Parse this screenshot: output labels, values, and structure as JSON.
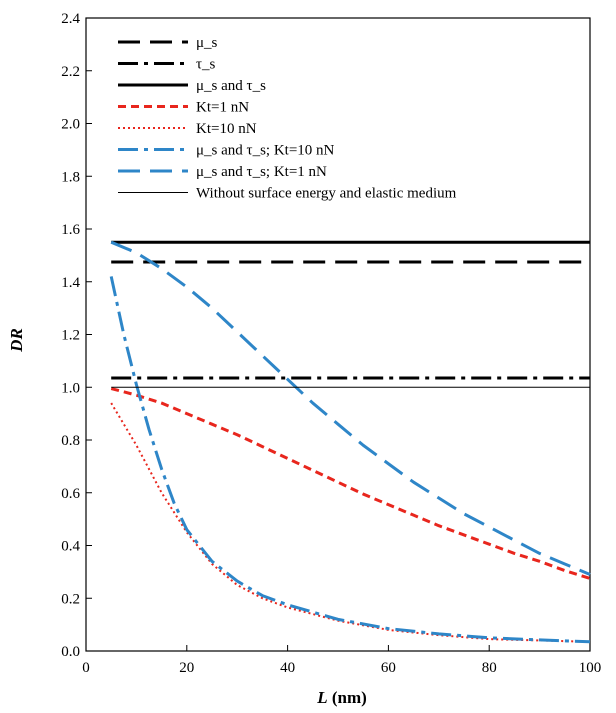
{
  "chart_data": {
    "type": "line",
    "title": "",
    "xlabel": "L",
    "xunit": " (nm)",
    "ylabel": "DR",
    "xlim": [
      0,
      100
    ],
    "ylim": [
      0,
      2.4
    ],
    "xticks": [
      "0",
      "20",
      "40",
      "60",
      "80",
      "100"
    ],
    "yticks": [
      "0.0",
      "0.2",
      "0.4",
      "0.6",
      "0.8",
      "1.0",
      "1.2",
      "1.4",
      "1.6",
      "1.8",
      "2.0",
      "2.2",
      "2.4"
    ],
    "grid": false,
    "legend_position": "top-left",
    "series": [
      {
        "name": "μ_s",
        "color": "#000000",
        "dash": "long-dash",
        "width": "thick",
        "x": [
          5,
          100
        ],
        "y": [
          1.475,
          1.475
        ]
      },
      {
        "name": "τ_s",
        "color": "#000000",
        "dash": "dash-dot",
        "width": "thick",
        "x": [
          5,
          100
        ],
        "y": [
          1.035,
          1.035
        ]
      },
      {
        "name": "μ_s and τ_s",
        "color": "#000000",
        "dash": "solid",
        "width": "thick",
        "x": [
          5,
          100
        ],
        "y": [
          1.55,
          1.55
        ]
      },
      {
        "name": "Kt=1 nN",
        "color": "#e8261d",
        "dash": "short-dash",
        "width": "thick",
        "x": [
          5,
          10,
          15,
          20,
          25,
          30,
          35,
          40,
          45,
          50,
          55,
          60,
          65,
          70,
          75,
          80,
          85,
          90,
          95,
          100
        ],
        "y": [
          0.995,
          0.97,
          0.94,
          0.9,
          0.86,
          0.82,
          0.775,
          0.73,
          0.685,
          0.64,
          0.595,
          0.555,
          0.515,
          0.475,
          0.44,
          0.405,
          0.37,
          0.34,
          0.305,
          0.275
        ]
      },
      {
        "name": "Kt=10 nN",
        "color": "#e8261d",
        "dash": "dotted",
        "width": "thin",
        "x": [
          5,
          10,
          15,
          20,
          25,
          30,
          35,
          40,
          50,
          60,
          70,
          80,
          90,
          100
        ],
        "y": [
          0.94,
          0.78,
          0.6,
          0.45,
          0.33,
          0.25,
          0.2,
          0.165,
          0.115,
          0.08,
          0.06,
          0.045,
          0.04,
          0.035
        ]
      },
      {
        "name": "μ_s and τ_s; Kt=10 nN",
        "color": "#2e86c8",
        "dash": "dash-dot",
        "width": "thick",
        "x": [
          5,
          7.5,
          10,
          12.5,
          15,
          17.5,
          20,
          25,
          30,
          35,
          40,
          50,
          60,
          70,
          80,
          90,
          100
        ],
        "y": [
          1.42,
          1.2,
          1.01,
          0.84,
          0.69,
          0.56,
          0.46,
          0.34,
          0.265,
          0.21,
          0.175,
          0.12,
          0.085,
          0.065,
          0.05,
          0.042,
          0.035
        ]
      },
      {
        "name": "μ_s and τ_s; Kt=1 nN",
        "color": "#2e86c8",
        "dash": "long-dash",
        "width": "thick",
        "x": [
          5,
          10,
          15,
          20,
          25,
          30,
          35,
          40,
          45,
          50,
          55,
          60,
          65,
          70,
          75,
          80,
          85,
          90,
          95,
          100
        ],
        "y": [
          1.55,
          1.51,
          1.45,
          1.38,
          1.3,
          1.21,
          1.12,
          1.03,
          0.94,
          0.86,
          0.78,
          0.71,
          0.64,
          0.58,
          0.52,
          0.47,
          0.42,
          0.37,
          0.33,
          0.29
        ]
      },
      {
        "name": "Without surface energy and elastic medium",
        "color": "#000000",
        "dash": "solid",
        "width": "hairline",
        "x": [
          5,
          100
        ],
        "y": [
          1.0,
          1.0
        ]
      }
    ]
  }
}
